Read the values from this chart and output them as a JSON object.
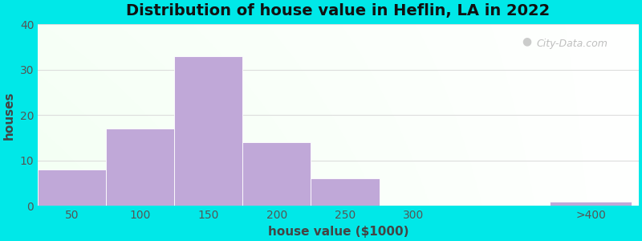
{
  "title": "Distribution of house value in Heflin, LA in 2022",
  "xlabel": "house value ($1000)",
  "ylabel": "houses",
  "bar_heights": [
    8,
    17,
    33,
    14,
    6,
    0,
    1
  ],
  "bar_centers": [
    50,
    100,
    150,
    200,
    250,
    300,
    430
  ],
  "bar_widths": [
    50,
    50,
    50,
    50,
    50,
    50,
    60
  ],
  "bar_color": "#c0a8d8",
  "bar_edgecolor": "#ffffff",
  "xtick_positions": [
    50,
    100,
    150,
    200,
    250,
    300,
    430
  ],
  "xtick_labels": [
    "50",
    "100",
    "150",
    "200",
    "250",
    "300",
    ">400"
  ],
  "ytick_positions": [
    0,
    10,
    20,
    30,
    40
  ],
  "ytick_labels": [
    "0",
    "10",
    "20",
    "30",
    "40"
  ],
  "ylim": [
    0,
    40
  ],
  "xlim": [
    25,
    465
  ],
  "bg_color": "#00e8e8",
  "title_fontsize": 14,
  "axis_label_fontsize": 11,
  "tick_fontsize": 10,
  "watermark_text": "City-Data.com",
  "grid_color": "#dddddd",
  "tick_color": "#555555"
}
